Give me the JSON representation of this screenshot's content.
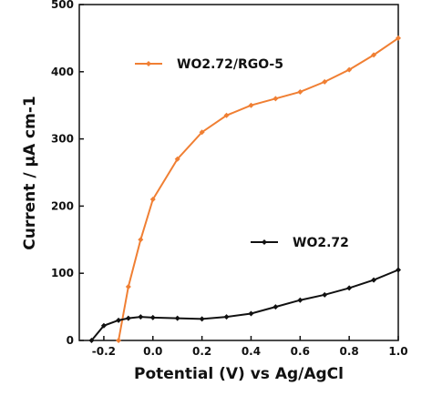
{
  "chart_data": {
    "type": "line",
    "xlabel": "Potential (V) vs Ag/AgCl",
    "ylabel": "Current / μA cm-1",
    "x": [
      -0.25,
      -0.2,
      -0.14,
      -0.1,
      -0.05,
      0,
      0.1,
      0.2,
      0.3,
      0.4,
      0.5,
      0.6,
      0.7,
      0.8,
      0.9,
      1.0
    ],
    "series": [
      {
        "name": "WO2.72/RGO-5",
        "color": "#f07f33",
        "values": [
          null,
          null,
          0,
          80,
          150,
          210,
          270,
          310,
          335,
          350,
          360,
          370,
          385,
          403,
          425,
          450
        ]
      },
      {
        "name": "WO2.72",
        "color": "#111111",
        "values": [
          0,
          22,
          30,
          33,
          35,
          34,
          33,
          32,
          35,
          40,
          50,
          60,
          68,
          78,
          90,
          105
        ]
      }
    ],
    "xlim": [
      -0.3,
      1.0
    ],
    "ylim": [
      0,
      500
    ],
    "xticks": [
      {
        "value": -0.2,
        "label": "-0.2"
      },
      {
        "value": 0,
        "label": "0.0"
      },
      {
        "value": 0.2,
        "label": "0.2"
      },
      {
        "value": 0.4,
        "label": "0.4"
      },
      {
        "value": 0.6,
        "label": "0.6"
      },
      {
        "value": 0.8,
        "label": "0.8"
      },
      {
        "value": 1.0,
        "label": "1.0"
      }
    ],
    "yticks": [
      0,
      100,
      200,
      300,
      400,
      500
    ],
    "grid": false
  }
}
